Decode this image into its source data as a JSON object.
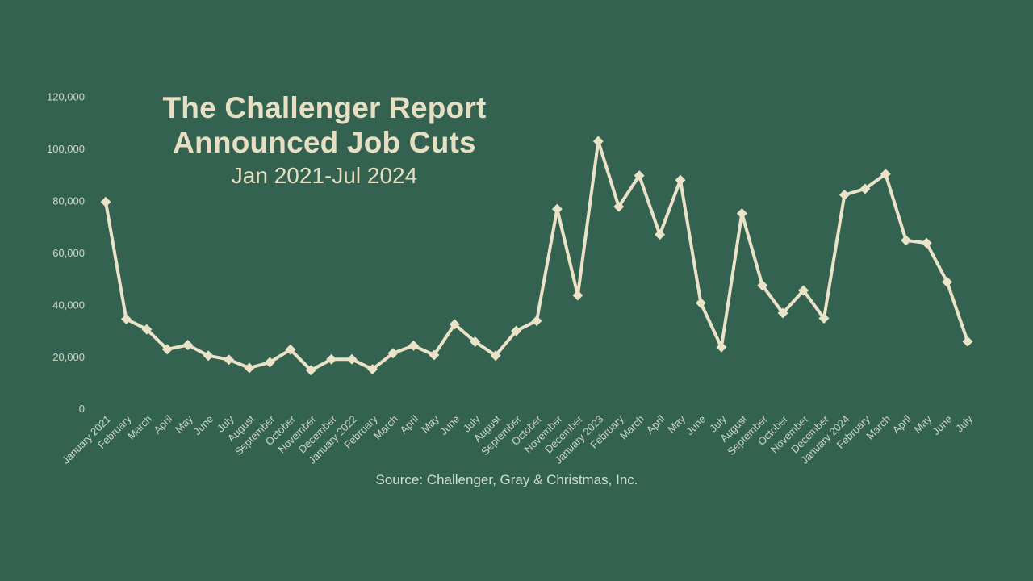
{
  "chart_data": {
    "type": "line",
    "title_line1": "The Challenger Report",
    "title_line2": "Announced Job Cuts",
    "subtitle": "Jan 2021-Jul 2024",
    "source": "Source: Challenger, Gray & Christmas, Inc.",
    "series_name": "Announced job cuts",
    "legend": "none",
    "grid": false,
    "marker_shape": "diamond",
    "ylim": [
      0,
      120000
    ],
    "y_ticks": [
      {
        "value": 0,
        "label": "0"
      },
      {
        "value": 20000,
        "label": "20,000"
      },
      {
        "value": 40000,
        "label": "40,000"
      },
      {
        "value": 60000,
        "label": "60,000"
      },
      {
        "value": 80000,
        "label": "80,000"
      },
      {
        "value": 100000,
        "label": "100,000"
      },
      {
        "value": 120000,
        "label": "120,000"
      }
    ],
    "categories": [
      "January 2021",
      "February",
      "March",
      "April",
      "May",
      "June",
      "July",
      "August",
      "September",
      "October",
      "November",
      "December",
      "January 2022",
      "February",
      "March",
      "April",
      "May",
      "June",
      "July",
      "August",
      "September",
      "October",
      "November",
      "December",
      "January 2023",
      "February",
      "March",
      "April",
      "May",
      "June",
      "July",
      "August",
      "September",
      "October",
      "November",
      "December",
      "January 2024",
      "February",
      "March",
      "April",
      "May",
      "June",
      "July"
    ],
    "values": [
      79552,
      34531,
      30603,
      22913,
      24586,
      20476,
      18942,
      15723,
      17895,
      22822,
      14875,
      19052,
      19064,
      15245,
      21387,
      24286,
      20712,
      32517,
      25810,
      20485,
      29989,
      33843,
      76835,
      43651,
      102943,
      77770,
      89703,
      66995,
      88000,
      40709,
      23697,
      75151,
      47457,
      36836,
      45510,
      34817,
      82307,
      84638,
      90309,
      64789,
      63816,
      48786,
      25885
    ],
    "colors": {
      "background": "#346251",
      "line": "#ebe3c8",
      "marker": "#ebe3c8",
      "title_text": "#e7dfc3",
      "tick_labels": "#cbd6c2",
      "source_text": "#d0ddd0"
    }
  }
}
